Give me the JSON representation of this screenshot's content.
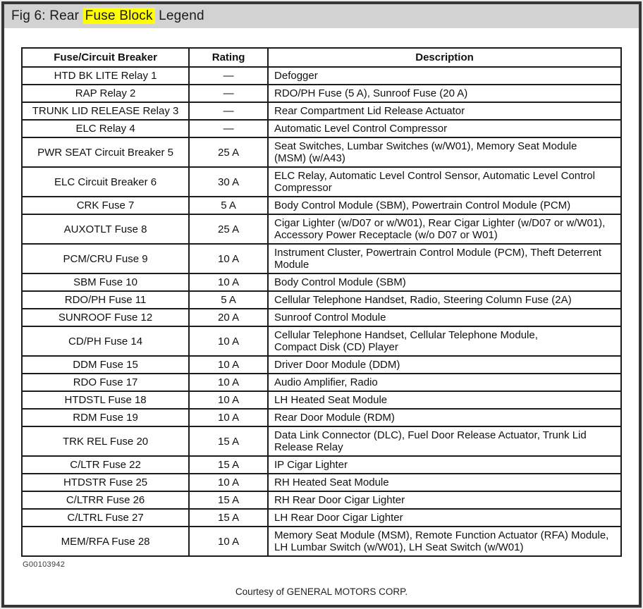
{
  "header": {
    "title_prefix": "Fig 6: Rear ",
    "title_highlight": "Fuse Block",
    "title_suffix": " Legend"
  },
  "table": {
    "headers": [
      "Fuse/Circuit Breaker",
      "Rating",
      "Description"
    ],
    "rows": [
      {
        "fuse": "HTD BK LITE Relay 1",
        "rating": "—",
        "description": "Defogger"
      },
      {
        "fuse": "RAP Relay 2",
        "rating": "—",
        "description": "RDO/PH Fuse (5 A), Sunroof Fuse (20 A)"
      },
      {
        "fuse": "TRUNK LID RELEASE Relay 3",
        "rating": "—",
        "description": "Rear Compartment Lid Release Actuator"
      },
      {
        "fuse": "ELC Relay 4",
        "rating": "—",
        "description": "Automatic Level Control Compressor"
      },
      {
        "fuse": "PWR SEAT Circuit Breaker 5",
        "rating": "25 A",
        "description": "Seat Switches, Lumbar Switches (w/W01), Memory Seat Module\n(MSM) (w/A43)"
      },
      {
        "fuse": "ELC Circuit Breaker 6",
        "rating": "30 A",
        "description": "ELC Relay, Automatic Level Control Sensor, Automatic Level Control\nCompressor"
      },
      {
        "fuse": "CRK Fuse 7",
        "rating": "5 A",
        "description": "Body Control Module (SBM), Powertrain Control Module (PCM)"
      },
      {
        "fuse": "AUXOTLT Fuse 8",
        "rating": "25 A",
        "description": "Cigar Lighter (w/D07 or w/W01), Rear Cigar Lighter (w/D07 or w/W01),\nAccessory Power Receptacle (w/o D07 or W01)"
      },
      {
        "fuse": "PCM/CRU Fuse 9",
        "rating": "10 A",
        "description": "Instrument Cluster, Powertrain Control Module (PCM), Theft Deterrent\nModule"
      },
      {
        "fuse": "SBM Fuse 10",
        "rating": "10 A",
        "description": "Body Control Module (SBM)"
      },
      {
        "fuse": "RDO/PH Fuse 11",
        "rating": "5 A",
        "description": "Cellular Telephone Handset, Radio, Steering Column Fuse (2A)"
      },
      {
        "fuse": "SUNROOF Fuse 12",
        "rating": "20 A",
        "description": "Sunroof Control Module"
      },
      {
        "fuse": "CD/PH Fuse 14",
        "rating": "10 A",
        "description": "Cellular Telephone Handset, Cellular Telephone Module,\nCompact Disk (CD) Player"
      },
      {
        "fuse": "DDM Fuse 15",
        "rating": "10 A",
        "description": "Driver Door Module (DDM)"
      },
      {
        "fuse": "RDO Fuse 17",
        "rating": "10 A",
        "description": "Audio Amplifier, Radio"
      },
      {
        "fuse": "HTDSTL Fuse 18",
        "rating": "10 A",
        "description": "LH Heated Seat Module"
      },
      {
        "fuse": "RDM Fuse 19",
        "rating": "10 A",
        "description": "Rear Door Module (RDM)"
      },
      {
        "fuse": "TRK REL Fuse 20",
        "rating": "15 A",
        "description": "Data Link Connector (DLC), Fuel Door Release Actuator, Trunk Lid\nRelease Relay"
      },
      {
        "fuse": "C/LTR Fuse 22",
        "rating": "15 A",
        "description": "IP Cigar Lighter"
      },
      {
        "fuse": "HTDSTR Fuse 25",
        "rating": "10 A",
        "description": "RH Heated Seat Module"
      },
      {
        "fuse": "C/LTRR Fuse 26",
        "rating": "15 A",
        "description": "RH Rear Door Cigar Lighter"
      },
      {
        "fuse": "C/LTRL Fuse 27",
        "rating": "15 A",
        "description": "LH Rear Door Cigar Lighter"
      },
      {
        "fuse": "MEM/RFA Fuse 28",
        "rating": "10 A",
        "description": "Memory Seat Module (MSM), Remote Function Actuator (RFA) Module,\nLH Lumbar Switch (w/W01), LH Seat Switch (w/W01)"
      }
    ]
  },
  "footer": {
    "figure_id": "G00103942",
    "courtesy": "Courtesy of GENERAL MOTORS CORP."
  },
  "colors": {
    "highlight": "#ffff00",
    "titlebar_bg": "#d2d2d2",
    "frame_border": "#363636",
    "table_border": "#1c1c1c"
  }
}
